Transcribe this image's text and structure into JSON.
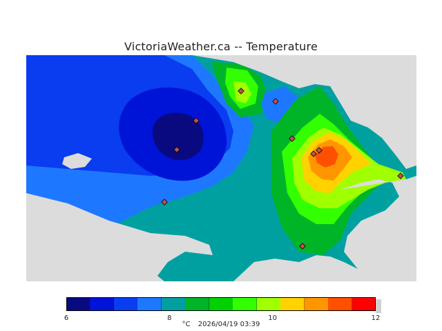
{
  "header": {
    "title": "VictoriaWeather.ca -- Temperature"
  },
  "map": {
    "background_color": "#dcdcdc",
    "stations_color": "#c05050"
  },
  "legend": {
    "min": 6,
    "max": 12,
    "ticks": [
      "6",
      "8",
      "10",
      "12"
    ],
    "tick_values": [
      6,
      8,
      10,
      12
    ],
    "colors": [
      "#0a0a80",
      "#0014d8",
      "#0a3cf0",
      "#1e78ff",
      "#00a0a0",
      "#00b428",
      "#00d200",
      "#32ff00",
      "#a0ff00",
      "#ffd200",
      "#ff9600",
      "#ff5000",
      "#ff0000"
    ],
    "unit": "°C",
    "timestamp": "2026/04/19 03:39"
  }
}
